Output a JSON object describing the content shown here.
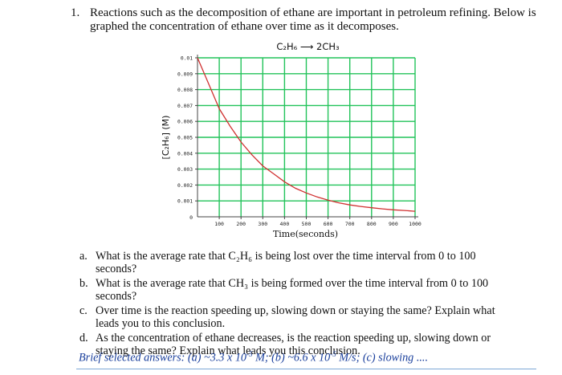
{
  "question": {
    "number": "1.",
    "text": "Reactions such as the decomposition of ethane are important in petroleum refining. Below is graphed the concentration of ethane over time as it decomposes."
  },
  "chart_data": {
    "type": "line",
    "title": "C₂H₆ ⟶ 2CH₃",
    "xlabel": "Time(seconds)",
    "ylabel": "[C₂H₆] (M)",
    "xlim": [
      0,
      1000
    ],
    "ylim": [
      0,
      0.01
    ],
    "x_ticks": [
      "100",
      "200",
      "300",
      "400",
      "500",
      "600",
      "700",
      "800",
      "900",
      "1000"
    ],
    "y_ticks": [
      "0.001",
      "0.002",
      "0.003",
      "0.004",
      "0.005",
      "0.006",
      "0.007",
      "0.008",
      "0.009",
      "0.01"
    ],
    "origin_label": "0",
    "grid": true,
    "series": [
      {
        "color": "#d03030",
        "x": [
          0,
          50,
          100,
          150,
          200,
          250,
          300,
          350,
          400,
          450,
          500,
          550,
          600,
          650,
          700,
          750,
          800,
          850,
          900,
          950,
          1000
        ],
        "y": [
          0.01,
          0.0084,
          0.0068,
          0.0057,
          0.0047,
          0.0039,
          0.0032,
          0.0027,
          0.0022,
          0.0018,
          0.0015,
          0.00125,
          0.00105,
          0.00088,
          0.00075,
          0.00065,
          0.00057,
          0.0005,
          0.00044,
          0.0004,
          0.00035
        ]
      }
    ],
    "colors": {
      "grid": "#22c35a",
      "axis": "#444444",
      "curve": "#d03030"
    }
  },
  "parts": [
    {
      "label": "a.",
      "text": "What is the average rate that C₂H₆ is being lost over the time interval from 0 to 100 seconds?"
    },
    {
      "label": "b.",
      "text": "What is the average rate that CH₃ is being formed over the time interval from 0 to 100 seconds?"
    },
    {
      "label": "c.",
      "text": "Over time is the reaction speeding up, slowing down or staying the same? Explain what leads you to this conclusion."
    },
    {
      "label": "d.",
      "text": "As the concentration of ethane decreases, is the reaction speeding up, slowing down or staying the same? Explain what leads you this conclusion."
    }
  ],
  "brief": {
    "prefix": "Brief selected answers: (a) ~3.3 x 10",
    "exp1": "-5",
    "mid1": " M;  (b) ~6.6 x 10",
    "exp2": "-5",
    "tail": " M/s;  (c) slowing ...."
  }
}
